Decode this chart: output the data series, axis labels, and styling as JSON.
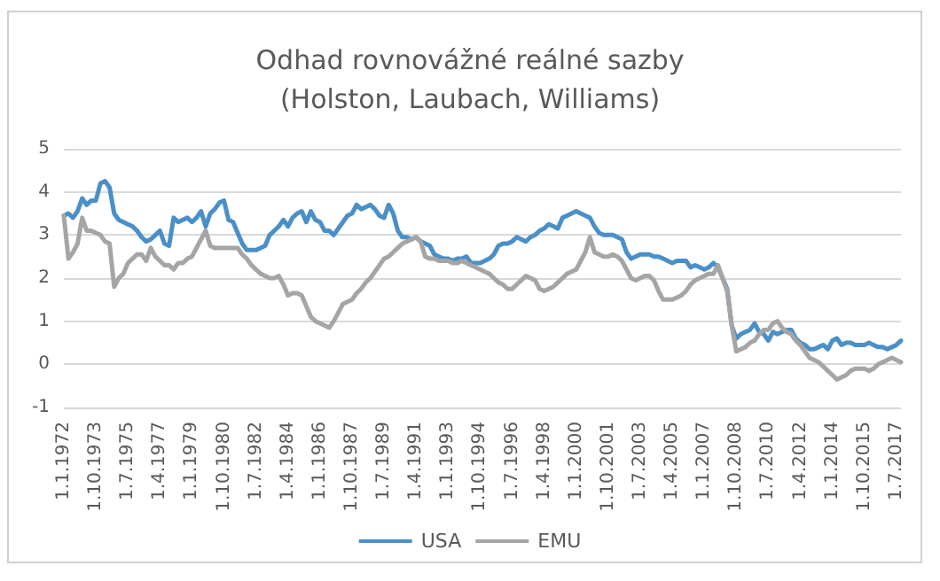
{
  "chart_data": {
    "type": "line",
    "title": "Odhad rovnovážné reálné sazby\n(Holston, Laubach, Williams)",
    "categories": [
      "1.1.1972",
      null,
      null,
      null,
      null,
      null,
      null,
      "1.10.1973",
      null,
      null,
      null,
      null,
      null,
      null,
      "1.7.1975",
      null,
      null,
      null,
      null,
      null,
      null,
      "1.4.1977",
      null,
      null,
      null,
      null,
      null,
      null,
      "1.1.1979",
      null,
      null,
      null,
      null,
      null,
      null,
      "1.10.1980",
      null,
      null,
      null,
      null,
      null,
      null,
      "1.7.1982",
      null,
      null,
      null,
      null,
      null,
      null,
      "1.4.1984",
      null,
      null,
      null,
      null,
      null,
      null,
      "1.1.1986",
      null,
      null,
      null,
      null,
      null,
      null,
      "1.10.1987",
      null,
      null,
      null,
      null,
      null,
      null,
      "1.7.1989",
      null,
      null,
      null,
      null,
      null,
      null,
      "1.4.1991",
      null,
      null,
      null,
      null,
      null,
      null,
      "1.1.1993",
      null,
      null,
      null,
      null,
      null,
      null,
      "1.10.1994",
      null,
      null,
      null,
      null,
      null,
      null,
      "1.7.1996",
      null,
      null,
      null,
      null,
      null,
      null,
      "1.4.1998",
      null,
      null,
      null,
      null,
      null,
      null,
      "1.1.2000",
      null,
      null,
      null,
      null,
      null,
      null,
      "1.10.2001",
      null,
      null,
      null,
      null,
      null,
      null,
      "1.7.2003",
      null,
      null,
      null,
      null,
      null,
      null,
      "1.4.2005",
      null,
      null,
      null,
      null,
      null,
      null,
      "1.1.2007",
      null,
      null,
      null,
      null,
      null,
      null,
      "1.10.2008",
      null,
      null,
      null,
      null,
      null,
      null,
      "1.7.2010",
      null,
      null,
      null,
      null,
      null,
      null,
      "1.4.2012",
      null,
      null,
      null,
      null,
      null,
      null,
      "1.1.2014",
      null,
      null,
      null,
      null,
      null,
      null,
      "1.10.2015",
      null,
      null,
      null,
      null,
      null,
      null,
      "1.7.2017",
      null
    ],
    "series": [
      {
        "name": "USA",
        "color": "#4a8fc8",
        "values": [
          3.45,
          3.5,
          3.4,
          3.55,
          3.85,
          3.7,
          3.8,
          3.8,
          4.2,
          4.25,
          4.1,
          3.5,
          3.35,
          3.3,
          3.25,
          3.2,
          3.1,
          2.95,
          2.85,
          2.9,
          3.0,
          3.1,
          2.8,
          2.75,
          3.4,
          3.3,
          3.35,
          3.4,
          3.3,
          3.4,
          3.55,
          3.2,
          3.5,
          3.6,
          3.75,
          3.8,
          3.35,
          3.3,
          3.05,
          2.8,
          2.65,
          2.65,
          2.65,
          2.7,
          2.75,
          3.0,
          3.1,
          3.2,
          3.35,
          3.2,
          3.4,
          3.5,
          3.55,
          3.3,
          3.55,
          3.35,
          3.3,
          3.1,
          3.1,
          3.0,
          3.15,
          3.3,
          3.45,
          3.5,
          3.7,
          3.6,
          3.65,
          3.7,
          3.6,
          3.45,
          3.4,
          3.7,
          3.5,
          3.1,
          2.95,
          2.95,
          2.9,
          2.95,
          2.85,
          2.8,
          2.75,
          2.55,
          2.5,
          2.45,
          2.45,
          2.4,
          2.45,
          2.45,
          2.5,
          2.35,
          2.35,
          2.35,
          2.4,
          2.45,
          2.55,
          2.75,
          2.8,
          2.8,
          2.85,
          2.95,
          2.9,
          2.85,
          2.95,
          3.0,
          3.1,
          3.15,
          3.25,
          3.2,
          3.15,
          3.4,
          3.45,
          3.5,
          3.55,
          3.5,
          3.45,
          3.4,
          3.2,
          3.05,
          3.0,
          3.0,
          3.0,
          2.95,
          2.9,
          2.6,
          2.45,
          2.5,
          2.55,
          2.55,
          2.55,
          2.5,
          2.5,
          2.45,
          2.4,
          2.35,
          2.4,
          2.4,
          2.4,
          2.25,
          2.3,
          2.25,
          2.2,
          2.25,
          2.35,
          2.25,
          2.0,
          1.75,
          0.9,
          0.6,
          0.7,
          0.75,
          0.8,
          0.95,
          0.75,
          0.7,
          0.55,
          0.75,
          0.7,
          0.75,
          0.8,
          0.8,
          0.6,
          0.5,
          0.45,
          0.35,
          0.35,
          0.4,
          0.45,
          0.35,
          0.55,
          0.6,
          0.45,
          0.5,
          0.5,
          0.45,
          0.45,
          0.45,
          0.5,
          0.45,
          0.4,
          0.4,
          0.35,
          0.4,
          0.45,
          0.55
        ]
      },
      {
        "name": "EMU",
        "color": "#a5a5a5",
        "values": [
          3.45,
          2.45,
          2.6,
          2.8,
          3.4,
          3.1,
          3.1,
          3.05,
          3.0,
          2.85,
          2.8,
          1.8,
          2.0,
          2.1,
          2.35,
          2.45,
          2.55,
          2.55,
          2.4,
          2.7,
          2.5,
          2.4,
          2.3,
          2.3,
          2.2,
          2.35,
          2.35,
          2.45,
          2.5,
          2.7,
          2.9,
          3.1,
          2.75,
          2.7,
          2.7,
          2.7,
          2.7,
          2.7,
          2.7,
          2.55,
          2.45,
          2.3,
          2.2,
          2.1,
          2.05,
          2.0,
          2.0,
          2.05,
          1.85,
          1.6,
          1.65,
          1.65,
          1.6,
          1.35,
          1.1,
          1.0,
          0.95,
          0.9,
          0.85,
          1.0,
          1.2,
          1.4,
          1.45,
          1.5,
          1.65,
          1.75,
          1.9,
          2.0,
          2.15,
          2.3,
          2.45,
          2.5,
          2.6,
          2.7,
          2.8,
          2.85,
          2.9,
          2.95,
          2.85,
          2.5,
          2.45,
          2.45,
          2.4,
          2.4,
          2.4,
          2.35,
          2.35,
          2.4,
          2.35,
          2.3,
          2.25,
          2.2,
          2.15,
          2.1,
          2.0,
          1.9,
          1.85,
          1.75,
          1.75,
          1.85,
          1.95,
          2.05,
          2.0,
          1.95,
          1.75,
          1.7,
          1.75,
          1.8,
          1.9,
          2.0,
          2.1,
          2.15,
          2.2,
          2.4,
          2.6,
          2.95,
          2.6,
          2.55,
          2.5,
          2.5,
          2.55,
          2.5,
          2.4,
          2.2,
          2.0,
          1.95,
          2.0,
          2.05,
          2.05,
          1.95,
          1.7,
          1.5,
          1.5,
          1.5,
          1.55,
          1.6,
          1.7,
          1.85,
          1.95,
          2.0,
          2.05,
          2.1,
          2.1,
          2.3,
          2.0,
          1.7,
          0.9,
          0.3,
          0.35,
          0.4,
          0.5,
          0.55,
          0.7,
          0.8,
          0.8,
          0.95,
          1.0,
          0.85,
          0.75,
          0.7,
          0.55,
          0.45,
          0.3,
          0.15,
          0.1,
          0.05,
          -0.05,
          -0.15,
          -0.25,
          -0.35,
          -0.3,
          -0.25,
          -0.15,
          -0.1,
          -0.1,
          -0.1,
          -0.15,
          -0.1,
          0.0,
          0.05,
          0.1,
          0.15,
          0.1,
          0.05
        ]
      }
    ],
    "ylim": [
      -1,
      5
    ],
    "yticks": [
      -1,
      0,
      1,
      2,
      3,
      4,
      5
    ],
    "grid": "y",
    "legend": "bottom",
    "marker": "none",
    "line_style": "solid"
  }
}
